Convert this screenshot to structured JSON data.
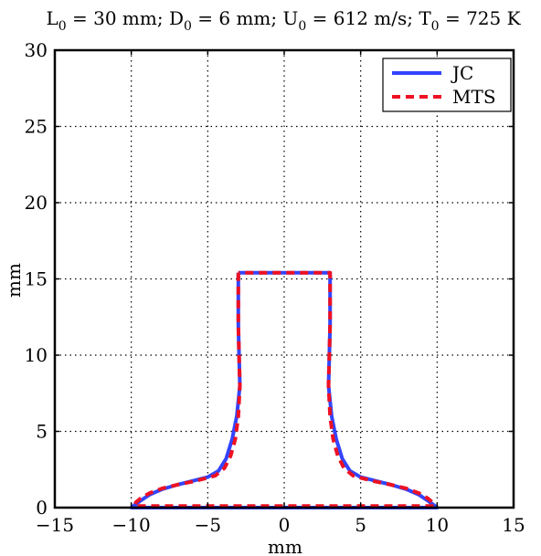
{
  "chart_data": {
    "type": "line",
    "title": {
      "segments": [
        {
          "text": "L",
          "sub": false
        },
        {
          "text": "0",
          "sub": true
        },
        {
          "text": " = 30 mm; D",
          "sub": false
        },
        {
          "text": "0",
          "sub": true
        },
        {
          "text": " = 6 mm; U",
          "sub": false
        },
        {
          "text": "0",
          "sub": true
        },
        {
          "text": " = 612 m/s; T",
          "sub": false
        },
        {
          "text": "0",
          "sub": true
        },
        {
          "text": " = 725 K",
          "sub": false
        }
      ]
    },
    "xlabel": "mm",
    "ylabel": "mm",
    "xlim": [
      -15,
      15
    ],
    "ylim": [
      0,
      30
    ],
    "xticks": [
      -15,
      -10,
      -5,
      0,
      5,
      10,
      15
    ],
    "xtick_labels": [
      "−15",
      "−10",
      "−5",
      "0",
      "5",
      "10",
      "15"
    ],
    "yticks": [
      0,
      5,
      10,
      15,
      20,
      25,
      30
    ],
    "ytick_labels": [
      "0",
      "5",
      "10",
      "15",
      "20",
      "25",
      "30"
    ],
    "grid": true,
    "legend_position": "top-right",
    "series": [
      {
        "name": "JC",
        "color": "#3344ff",
        "dash": "solid",
        "x": [
          -3.0,
          -3.0,
          -2.95,
          -2.9,
          -3.1,
          -3.4,
          -3.8,
          -4.3,
          -5.0,
          -6.0,
          -7.0,
          -8.0,
          -8.8,
          -9.4,
          -9.8,
          -10.0,
          10.0,
          9.8,
          9.4,
          8.8,
          8.0,
          7.0,
          6.0,
          5.0,
          4.3,
          3.8,
          3.4,
          3.1,
          2.9,
          2.95,
          3.0,
          3.0,
          -3.0
        ],
        "y": [
          15.4,
          12.0,
          10.0,
          8.0,
          6.0,
          4.5,
          3.2,
          2.4,
          2.0,
          1.75,
          1.5,
          1.2,
          0.85,
          0.45,
          0.15,
          0.0,
          0.0,
          0.15,
          0.45,
          0.85,
          1.2,
          1.5,
          1.75,
          2.0,
          2.4,
          3.2,
          4.5,
          6.0,
          8.0,
          10.0,
          12.0,
          15.4,
          15.4
        ]
      },
      {
        "name": "MTS",
        "color": "#ee1122",
        "dash": "dashed",
        "x": [
          -3.0,
          -3.0,
          -2.95,
          -2.9,
          -3.0,
          -3.2,
          -3.5,
          -3.9,
          -4.5,
          -5.0,
          -6.0,
          -7.0,
          -8.0,
          -8.8,
          -9.4,
          -9.7,
          -9.8,
          9.8,
          9.7,
          9.4,
          8.8,
          8.0,
          7.0,
          6.0,
          5.0,
          4.5,
          3.9,
          3.5,
          3.2,
          3.0,
          2.9,
          2.95,
          3.0,
          3.0,
          -3.0
        ],
        "y": [
          15.4,
          12.0,
          10.0,
          8.0,
          6.0,
          4.5,
          3.4,
          2.6,
          2.1,
          1.95,
          1.7,
          1.5,
          1.25,
          0.95,
          0.6,
          0.35,
          0.1,
          0.1,
          0.35,
          0.6,
          0.95,
          1.25,
          1.5,
          1.7,
          1.95,
          2.1,
          2.6,
          3.4,
          4.5,
          6.0,
          8.0,
          10.0,
          12.0,
          15.4,
          15.4
        ]
      }
    ]
  }
}
